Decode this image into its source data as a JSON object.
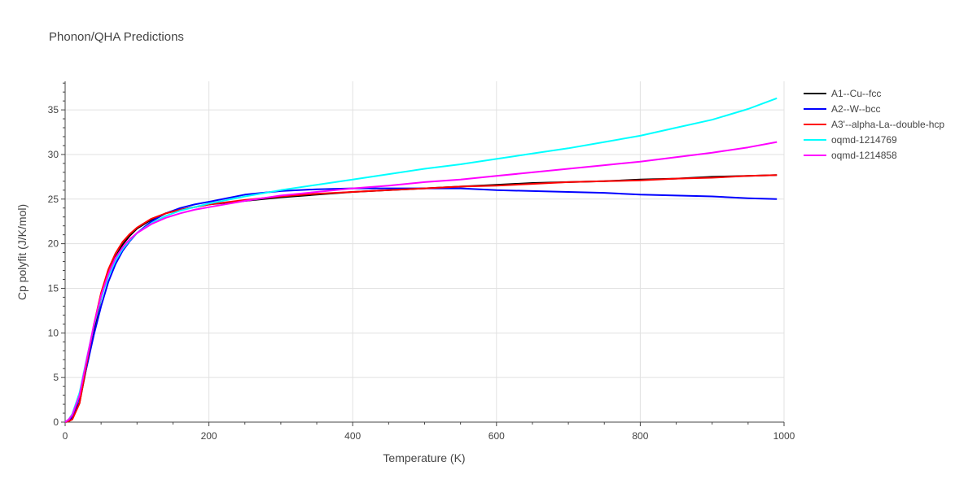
{
  "chart_data": {
    "type": "line",
    "title": "Phonon/QHA Predictions",
    "xlabel": "Temperature (K)",
    "ylabel": "Cp polyfit (J/K/mol)",
    "xlim": [
      0,
      1000
    ],
    "ylim": [
      0,
      38.2
    ],
    "xticks": [
      0,
      200,
      400,
      600,
      800,
      1000
    ],
    "yticks": [
      0,
      5,
      10,
      15,
      20,
      25,
      30,
      35
    ],
    "grid": true,
    "legend_position": "top-right",
    "x": [
      0,
      5,
      10,
      20,
      30,
      40,
      50,
      60,
      70,
      80,
      90,
      100,
      120,
      140,
      160,
      180,
      200,
      250,
      300,
      350,
      400,
      450,
      500,
      550,
      600,
      650,
      700,
      750,
      800,
      850,
      900,
      950,
      990
    ],
    "series": [
      {
        "name": "A1--Cu--fcc",
        "color": "#000000",
        "values": [
          0,
          0.1,
          0.4,
          2.2,
          6.3,
          10.3,
          13.9,
          16.6,
          18.5,
          19.9,
          20.9,
          21.7,
          22.7,
          23.4,
          23.8,
          24.1,
          24.4,
          24.8,
          25.2,
          25.5,
          25.8,
          26.0,
          26.2,
          26.4,
          26.6,
          26.8,
          26.9,
          27.0,
          27.2,
          27.3,
          27.5,
          27.6,
          27.7
        ]
      },
      {
        "name": "A2--W--bcc",
        "color": "#0000ff",
        "values": [
          0,
          0.2,
          0.6,
          2.8,
          6.2,
          9.8,
          13.0,
          15.7,
          17.7,
          19.2,
          20.3,
          21.2,
          22.5,
          23.4,
          24.0,
          24.4,
          24.7,
          25.5,
          25.9,
          26.1,
          26.2,
          26.2,
          26.2,
          26.2,
          26.0,
          25.9,
          25.8,
          25.7,
          25.5,
          25.4,
          25.3,
          25.1,
          25.0
        ]
      },
      {
        "name": "A3'--alpha-La--double-hcp",
        "color": "#ff0000",
        "values": [
          0,
          0.1,
          0.3,
          2.1,
          6.6,
          10.9,
          14.5,
          17.1,
          18.9,
          20.2,
          21.1,
          21.8,
          22.8,
          23.4,
          23.8,
          24.1,
          24.4,
          24.9,
          25.3,
          25.6,
          25.8,
          26.0,
          26.2,
          26.4,
          26.5,
          26.7,
          26.9,
          27.0,
          27.1,
          27.3,
          27.4,
          27.6,
          27.7
        ]
      },
      {
        "name": "oqmd-1214769",
        "color": "#00ffff",
        "values": [
          0,
          0.3,
          0.9,
          3.3,
          7.1,
          10.8,
          13.9,
          16.3,
          18.1,
          19.4,
          20.4,
          21.2,
          22.3,
          23.1,
          23.7,
          24.1,
          24.5,
          25.3,
          26.0,
          26.6,
          27.2,
          27.8,
          28.4,
          28.9,
          29.5,
          30.1,
          30.7,
          31.4,
          32.1,
          33.0,
          33.9,
          35.1,
          36.3
        ]
      },
      {
        "name": "oqmd-1214858",
        "color": "#ff00ff",
        "values": [
          0,
          0.3,
          0.8,
          3.0,
          7.0,
          10.9,
          14.2,
          16.6,
          18.4,
          19.6,
          20.5,
          21.2,
          22.2,
          22.9,
          23.4,
          23.8,
          24.1,
          24.8,
          25.4,
          25.8,
          26.2,
          26.5,
          26.9,
          27.2,
          27.6,
          28.0,
          28.4,
          28.8,
          29.2,
          29.7,
          30.2,
          30.8,
          31.4
        ]
      }
    ]
  }
}
